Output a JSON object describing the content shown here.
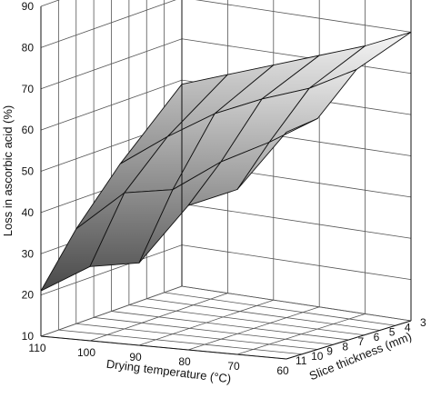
{
  "chart_data": {
    "type": "surface",
    "title": "",
    "zlabel": "Loss in ascorbic acid (%)",
    "xlabel": "Drying temperature (°C)",
    "ylabel": "Slice thickness (mm)",
    "zlim": [
      10,
      90
    ],
    "z_ticks": [
      "10",
      "20",
      "30",
      "40",
      "50",
      "60",
      "70",
      "80",
      "90"
    ],
    "x_ticks": [
      "110",
      "100",
      "90",
      "80",
      "70",
      "60"
    ],
    "y_ticks": [
      "3",
      "4",
      "5",
      "6",
      "7",
      "8",
      "9",
      "10",
      "11"
    ],
    "x_grid": [
      60,
      70,
      80,
      90,
      100,
      110
    ],
    "y_grid": [
      3,
      6.5,
      9,
      11
    ],
    "z_grid": [
      [
        80,
        75,
        66,
        65
      ],
      [
        75,
        69,
        59,
        50
      ],
      [
        71,
        65,
        53,
        45
      ],
      [
        67,
        60,
        45,
        30
      ],
      [
        63,
        53,
        43,
        28
      ],
      [
        59,
        45,
        33,
        21
      ]
    ],
    "grid": true
  }
}
